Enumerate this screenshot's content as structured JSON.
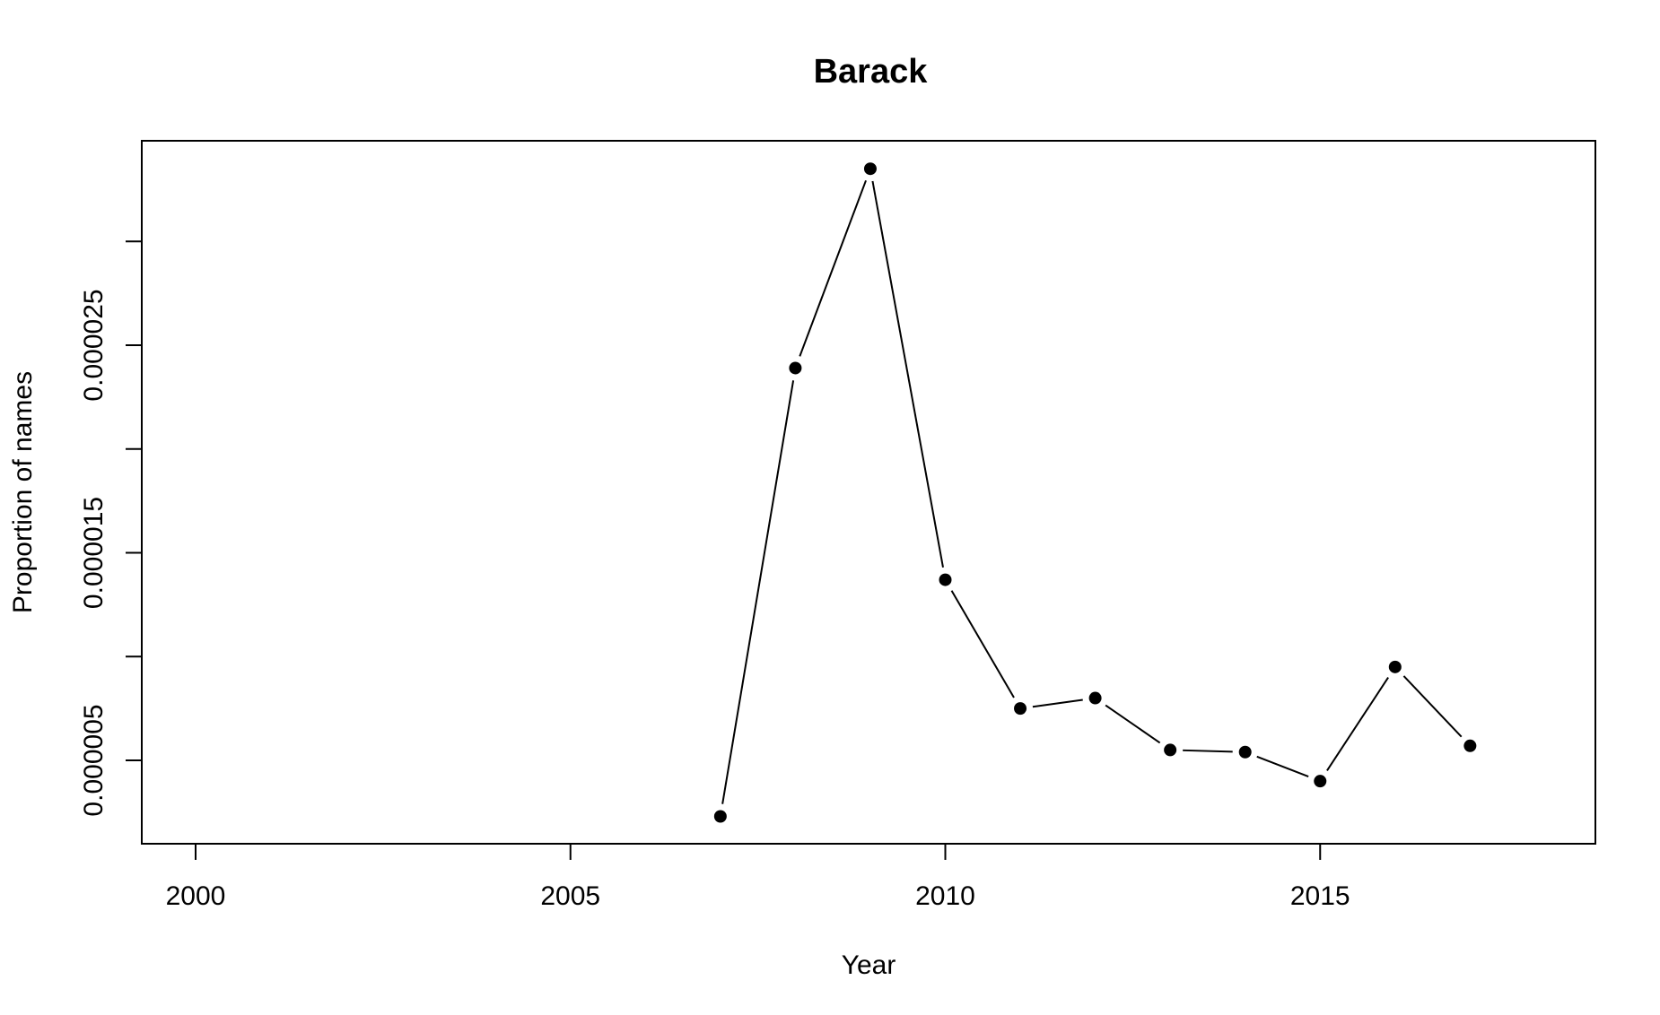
{
  "chart_data": {
    "type": "line",
    "title": "Barack",
    "xlabel": "Year",
    "ylabel": "Proportion of names",
    "xlim": [
      2000,
      2018
    ],
    "ylim": [
      1.3e-06,
      3.35e-05
    ],
    "x_ticks": [
      2000,
      2005,
      2010,
      2015
    ],
    "x_tick_labels": [
      "2000",
      "2005",
      "2010",
      "2015"
    ],
    "y_ticks": [
      5e-06,
      1e-05,
      1.5e-05,
      2e-05,
      2.5e-05,
      3e-05
    ],
    "y_tick_labels": [
      "0.000005",
      "",
      "0.000015",
      "",
      "0.000025",
      ""
    ],
    "grid": false,
    "series": [
      {
        "x": [
          2007,
          2008,
          2009,
          2010,
          2011,
          2012,
          2013,
          2014,
          2015,
          2016,
          2017
        ],
        "values": [
          2.3e-06,
          2.39e-05,
          3.35e-05,
          1.37e-05,
          7.5e-06,
          8e-06,
          5.5e-06,
          5.4e-06,
          4e-06,
          9.5e-06,
          5.7e-06
        ]
      }
    ]
  }
}
